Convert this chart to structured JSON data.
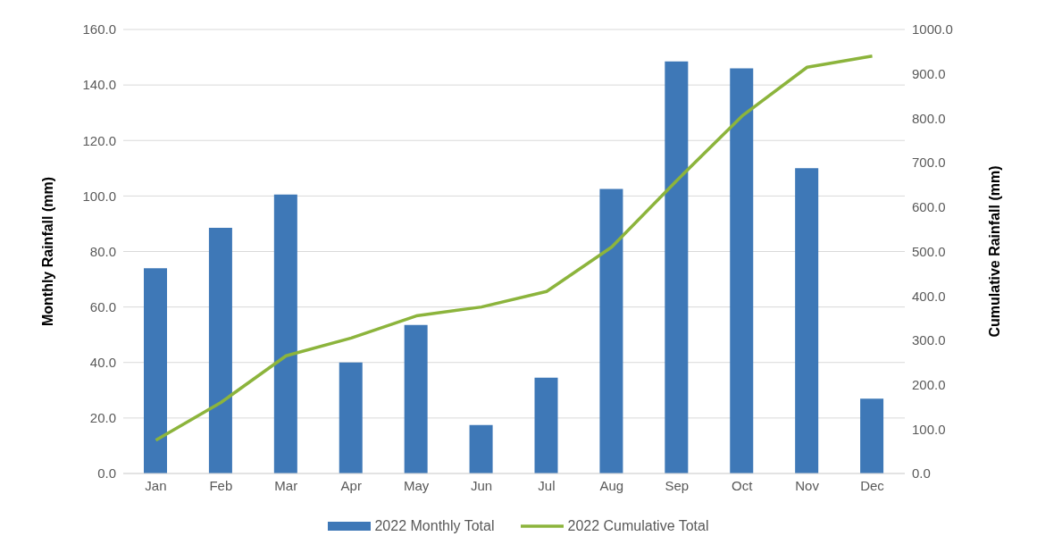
{
  "chart_data": {
    "type": "bar",
    "categories": [
      "Jan",
      "Feb",
      "Mar",
      "Apr",
      "May",
      "Jun",
      "Jul",
      "Aug",
      "Sep",
      "Oct",
      "Nov",
      "Dec"
    ],
    "series": [
      {
        "name": "2022 Monthly Total",
        "color": "#3e78b7",
        "values": [
          74,
          88.5,
          100.5,
          40,
          53.5,
          17.5,
          34.5,
          102.5,
          148.5,
          146,
          110,
          27
        ]
      },
      {
        "name": "2022 Cumulative Total",
        "type": "line",
        "axis": "y2",
        "color": "#8cb43c",
        "values": [
          75,
          160,
          265,
          305,
          355,
          375,
          410,
          510,
          660,
          805,
          915,
          940
        ]
      }
    ],
    "ylabel": "Monthly Rainfall (mm)",
    "y2label": "Cumulative Rainfall (mm)",
    "ylim": [
      0,
      160
    ],
    "yticks": [
      {
        "value": 0,
        "label": "0.0"
      },
      {
        "value": 20,
        "label": "20.0"
      },
      {
        "value": 40,
        "label": "40.0"
      },
      {
        "value": 60,
        "label": "60.0"
      },
      {
        "value": 80,
        "label": "80.0"
      },
      {
        "value": 100,
        "label": "100.0"
      },
      {
        "value": 120,
        "label": "120.0"
      },
      {
        "value": 140,
        "label": "140.0"
      },
      {
        "value": 160,
        "label": "160.0"
      }
    ],
    "y2lim": [
      0,
      1000
    ],
    "y2ticks": [
      {
        "value": 0,
        "label": "0.0"
      },
      {
        "value": 100,
        "label": "100.0"
      },
      {
        "value": 200,
        "label": "200.0"
      },
      {
        "value": 300,
        "label": "300.0"
      },
      {
        "value": 400,
        "label": "400.0"
      },
      {
        "value": 500,
        "label": "500.0"
      },
      {
        "value": 600,
        "label": "600.0"
      },
      {
        "value": 700,
        "label": "700.0"
      },
      {
        "value": 800,
        "label": "800.0"
      },
      {
        "value": 900,
        "label": "900.0"
      },
      {
        "value": 1000,
        "label": "1000.0"
      }
    ],
    "grid": "y",
    "legend": "bottom",
    "marker": "none",
    "line_style": "solid"
  }
}
